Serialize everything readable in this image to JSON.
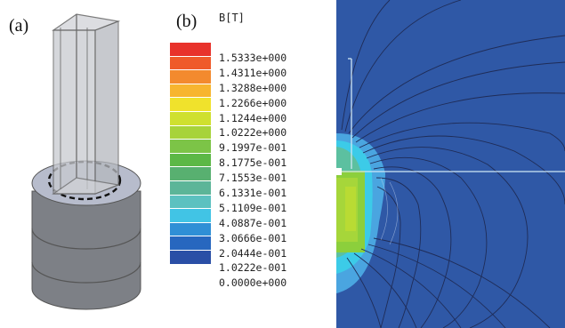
{
  "panels": {
    "a": "(a)",
    "b": "(b)"
  },
  "legend": {
    "title": "B[T]",
    "values": [
      "1.5333e+000",
      "1.4311e+000",
      "1.3288e+000",
      "1.2266e+000",
      "1.1244e+000",
      "1.0222e+000",
      "9.1997e-001",
      "8.1775e-001",
      "7.1553e-001",
      "6.1331e-001",
      "5.1109e-001",
      "4.0887e-001",
      "3.0666e-001",
      "2.0444e-001",
      "1.0222e-001",
      "0.0000e+000"
    ],
    "colors": [
      "#e8322b",
      "#ef5a2a",
      "#f38a2e",
      "#f7b52f",
      "#f0e22c",
      "#cfe02f",
      "#a7d33a",
      "#7cc447",
      "#5cb846",
      "#58b070",
      "#5cb598",
      "#5cc1c0",
      "#41c4e5",
      "#2f8fd6",
      "#2767bf",
      "#2a4fa6"
    ]
  },
  "colors": {
    "field_background": "#2f58a6",
    "contour_line": "#1f2c57",
    "axis_line": "#cfe7f5"
  }
}
